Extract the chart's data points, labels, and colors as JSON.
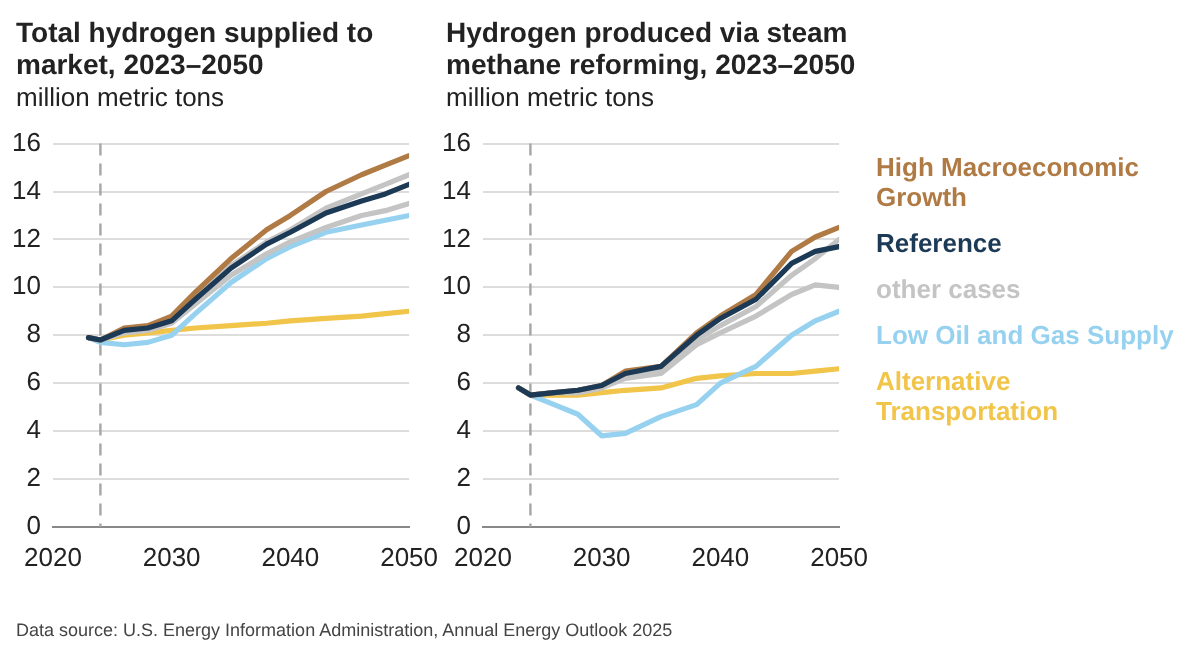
{
  "chart_data": [
    {
      "type": "line",
      "title": "Total hydrogen supplied to market, 2023–2050",
      "subtitle": "million metric tons",
      "x": [
        2023,
        2024,
        2026,
        2028,
        2030,
        2032,
        2035,
        2038,
        2040,
        2043,
        2046,
        2048,
        2050
      ],
      "xlim": [
        2020,
        2050
      ],
      "xticks": [
        2020,
        2030,
        2040,
        2050
      ],
      "ylim": [
        0,
        16
      ],
      "yticks": [
        0,
        2,
        4,
        6,
        8,
        10,
        12,
        14,
        16
      ],
      "grid": "y",
      "marker": "none",
      "line_style": "solid",
      "ref_lines": [
        {
          "axis": "x",
          "value": 2024,
          "color": "#a6a6a6",
          "line_style": "dashed"
        }
      ],
      "series": [
        {
          "color": "#b07a45",
          "values": [
            7.9,
            7.8,
            8.3,
            8.4,
            8.8,
            9.8,
            11.2,
            12.4,
            13.0,
            14.0,
            14.7,
            15.1,
            15.5
          ]
        },
        {
          "color": "#1c3a56",
          "values": [
            7.9,
            7.8,
            8.2,
            8.3,
            8.6,
            9.5,
            10.8,
            11.8,
            12.3,
            13.1,
            13.6,
            13.9,
            14.3
          ]
        },
        {
          "color": "#c4c4c4",
          "values": [
            7.9,
            7.8,
            8.2,
            8.3,
            8.6,
            9.5,
            10.9,
            11.9,
            12.4,
            13.3,
            13.9,
            14.3,
            14.7
          ]
        },
        {
          "color": "#c4c4c4",
          "values": [
            7.9,
            7.8,
            8.1,
            8.2,
            8.5,
            9.3,
            10.5,
            11.4,
            11.9,
            12.5,
            13.0,
            13.2,
            13.5
          ]
        },
        {
          "color": "#96d2f0",
          "values": [
            7.9,
            7.7,
            7.6,
            7.7,
            8.0,
            8.9,
            10.2,
            11.2,
            11.7,
            12.3,
            12.6,
            12.8,
            13.0
          ]
        },
        {
          "color": "#f1c44a",
          "values": [
            7.9,
            7.8,
            8.0,
            8.1,
            8.2,
            8.3,
            8.4,
            8.5,
            8.6,
            8.7,
            8.8,
            8.9,
            9.0
          ]
        }
      ],
      "annotations": [
        "Data source: U.S. Energy Information Administration, Annual Energy Outlook 2025"
      ]
    },
    {
      "type": "line",
      "title": "Hydrogen produced via steam methane reforming, 2023–2050",
      "subtitle": "million metric tons",
      "x": [
        2023,
        2024,
        2026,
        2028,
        2030,
        2032,
        2035,
        2038,
        2040,
        2043,
        2046,
        2048,
        2050
      ],
      "xlim": [
        2020,
        2050
      ],
      "xticks": [
        2020,
        2030,
        2040,
        2050
      ],
      "ylim": [
        0,
        16
      ],
      "yticks": [
        0,
        2,
        4,
        6,
        8,
        10,
        12,
        14,
        16
      ],
      "grid": "y",
      "marker": "none",
      "line_style": "solid",
      "legend": "right",
      "ref_lines": [
        {
          "axis": "x",
          "value": 2024,
          "color": "#a6a6a6",
          "line_style": "dashed"
        }
      ],
      "series": [
        {
          "name": "High Macroeconomic Growth",
          "color": "#b07a45",
          "values": [
            5.8,
            5.5,
            5.6,
            5.7,
            5.9,
            6.5,
            6.7,
            8.1,
            8.8,
            9.7,
            11.5,
            12.1,
            12.5
          ]
        },
        {
          "name": "Reference",
          "color": "#1c3a56",
          "values": [
            5.8,
            5.5,
            5.6,
            5.7,
            5.9,
            6.4,
            6.7,
            8.0,
            8.7,
            9.5,
            11.0,
            11.5,
            11.7
          ]
        },
        {
          "name": "other cases",
          "color": "#c4c4c4",
          "values": [
            5.8,
            5.5,
            5.6,
            5.6,
            5.8,
            6.3,
            6.5,
            7.8,
            8.4,
            9.2,
            10.5,
            11.2,
            12.0
          ]
        },
        {
          "color": "#c4c4c4",
          "values": [
            5.8,
            5.5,
            5.6,
            5.6,
            5.8,
            6.2,
            6.4,
            7.6,
            8.1,
            8.8,
            9.7,
            10.1,
            10.0
          ]
        },
        {
          "name": "Low Oil and Gas Supply",
          "color": "#96d2f0",
          "values": [
            5.8,
            5.5,
            5.1,
            4.7,
            3.8,
            3.9,
            4.6,
            5.1,
            6.0,
            6.7,
            8.0,
            8.6,
            9.0
          ]
        },
        {
          "name": "Alternative Transportation",
          "color": "#f1c44a",
          "values": [
            5.8,
            5.5,
            5.5,
            5.5,
            5.6,
            5.7,
            5.8,
            6.2,
            6.3,
            6.4,
            6.4,
            6.5,
            6.6
          ]
        }
      ]
    }
  ]
}
